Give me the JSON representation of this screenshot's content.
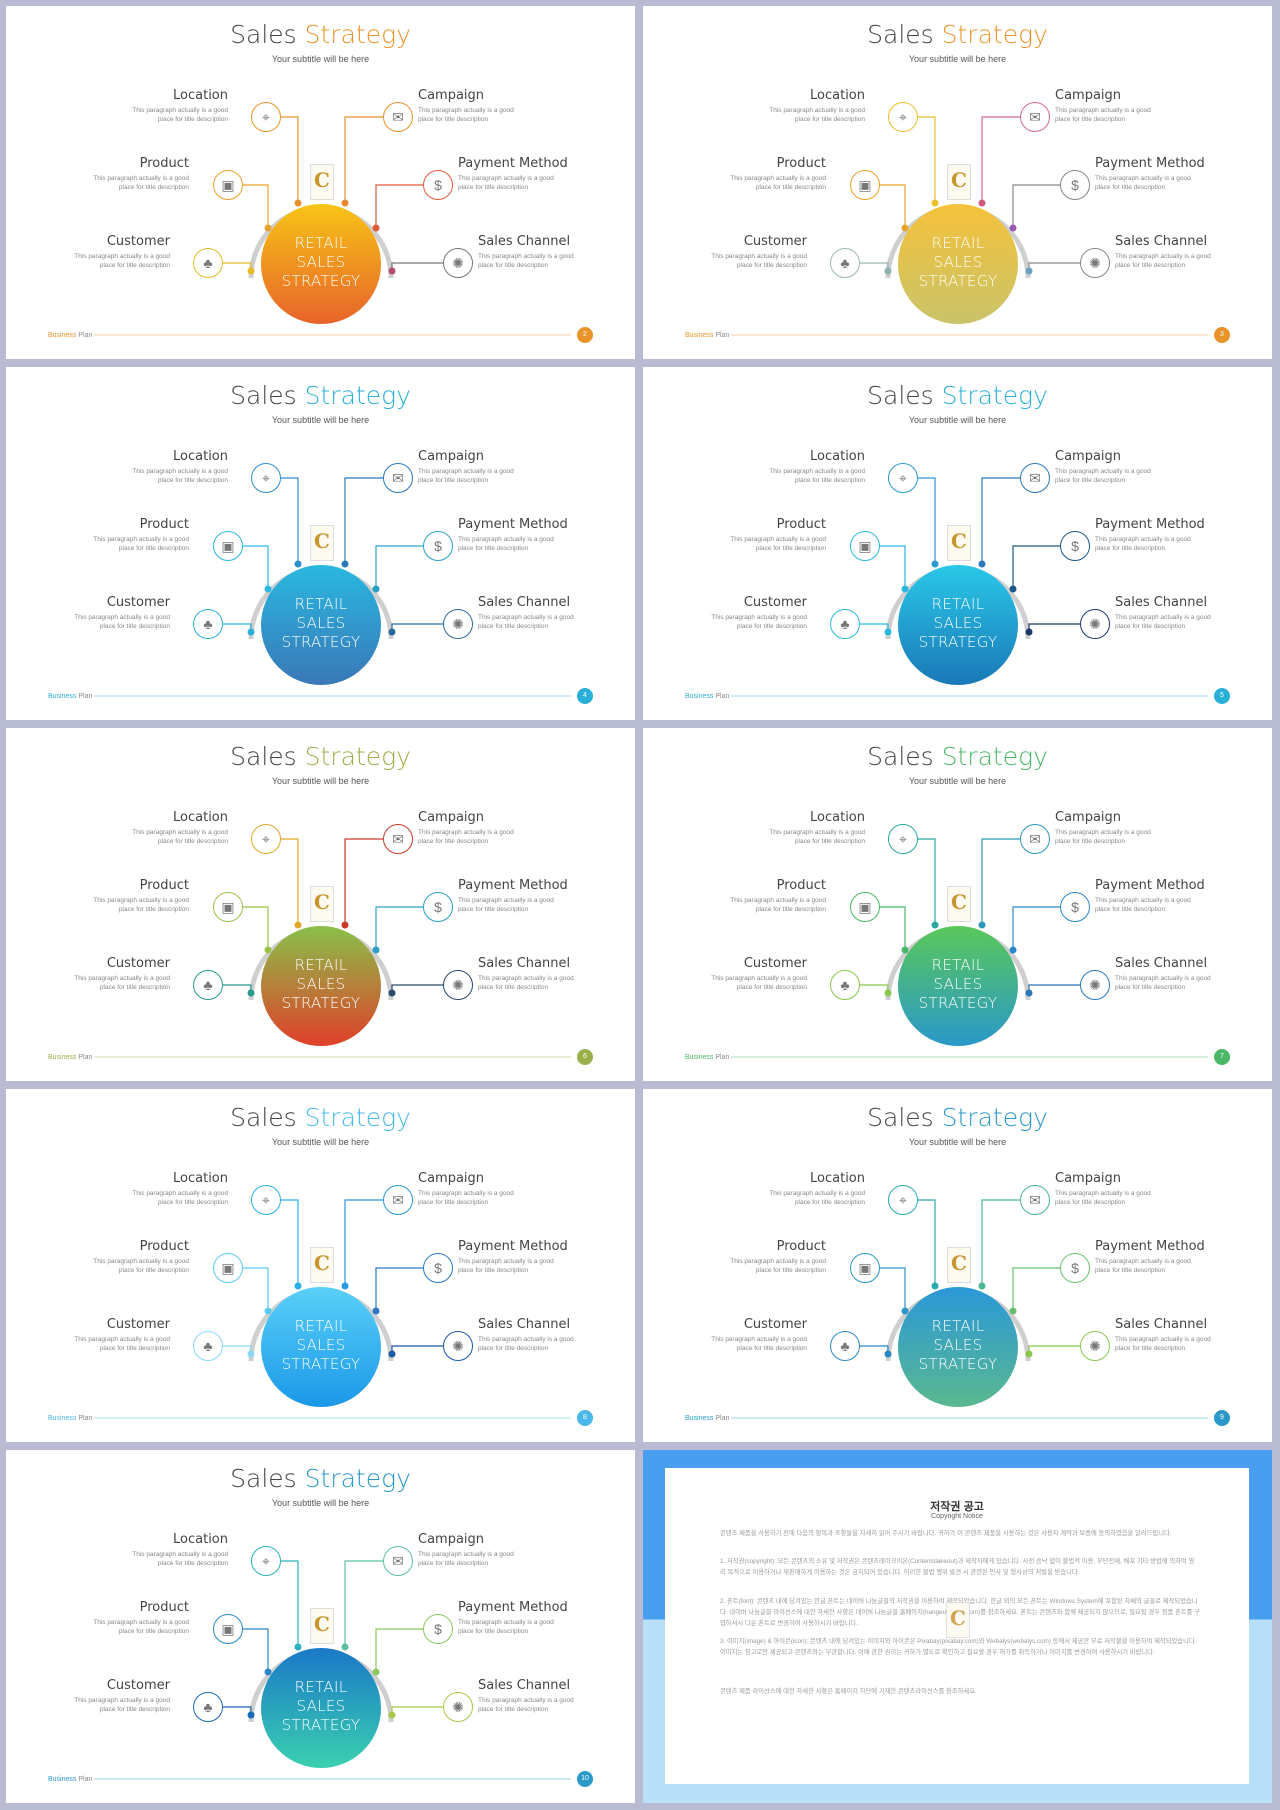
{
  "slides": [
    {
      "title_main": "Sales",
      "title_accent": "Strategy",
      "accent": "#e8942a",
      "subtitle": "Your subtitle will be here",
      "center": [
        "RETAIL",
        "SALES",
        "STRATEGY"
      ],
      "grad_top": "#f7c417",
      "grad_bottom": "#e8632a",
      "node_colors": [
        "#e6b928",
        "#e8a22a",
        "#e8902a",
        "#e88a2a",
        "#e05a3a",
        "#b0506a"
      ],
      "icon_colors": [
        "#e6b928",
        "#e8a22a",
        "#e8942a",
        "#e8902a",
        "#e05a3a",
        "#777777"
      ],
      "brand": [
        "Business",
        "Plan"
      ],
      "page": "2"
    },
    {
      "title_main": "Sales",
      "title_accent": "Strategy",
      "accent": "#e8942a",
      "subtitle": "Your subtitle will be here",
      "center": [
        "RETAIL",
        "SALES",
        "STRATEGY"
      ],
      "grad_top": "#f5c23a",
      "grad_bottom": "#c9c36a",
      "node_colors": [
        "#8ab0b0",
        "#e8a22a",
        "#e8c02a",
        "#d05a7a",
        "#9a5ab0",
        "#6aa0c0"
      ],
      "icon_colors": [
        "#9bb5b5",
        "#e8a22a",
        "#e8c02a",
        "#d06a8a",
        "#888888",
        "#888888"
      ],
      "brand": [
        "Business",
        "Plan"
      ],
      "page": "3"
    },
    {
      "title_main": "Sales",
      "title_accent": "Strategy",
      "accent": "#2ab0d8",
      "subtitle": "Your subtitle will be here",
      "center": [
        "RETAIL",
        "SALES",
        "STRATEGY"
      ],
      "grad_top": "#2ab8e0",
      "grad_bottom": "#3a78b8",
      "node_colors": [
        "#2ab0d8",
        "#2ab8e0",
        "#2a90c8",
        "#2a78b8",
        "#2aa0c8",
        "#2a6898"
      ],
      "icon_colors": [
        "#2ab0d8",
        "#2ab8e0",
        "#2a90c8",
        "#2a78b8",
        "#2aa0c8",
        "#2a6898"
      ],
      "brand": [
        "Business",
        "Plan"
      ],
      "page": "4"
    },
    {
      "title_main": "Sales",
      "title_accent": "Strategy",
      "accent": "#2ab0d8",
      "subtitle": "Your subtitle will be here",
      "center": [
        "RETAIL",
        "SALES",
        "STRATEGY"
      ],
      "grad_top": "#2ac8e8",
      "grad_bottom": "#1a78b8",
      "node_colors": [
        "#2ab8e0",
        "#2ab8e0",
        "#2a98d0",
        "#2a78b8",
        "#1a5888",
        "#1a3868"
      ],
      "icon_colors": [
        "#2ab8e0",
        "#2ab8e0",
        "#2a98d0",
        "#2a78b8",
        "#1a5888",
        "#1a3868"
      ],
      "brand": [
        "Business",
        "Plan"
      ],
      "page": "5"
    },
    {
      "title_main": "Sales",
      "title_accent": "Strategy",
      "accent": "#9ab04a",
      "subtitle": "Your subtitle will be here",
      "center": [
        "RETAIL",
        "SALES",
        "STRATEGY"
      ],
      "grad_top": "#8ac04a",
      "grad_bottom": "#e0402a",
      "node_colors": [
        "#2a9a8a",
        "#9ac04a",
        "#e0a82a",
        "#c83a2a",
        "#2aa0c8",
        "#2a4868"
      ],
      "icon_colors": [
        "#2a9a8a",
        "#9ac04a",
        "#e0a82a",
        "#c83a2a",
        "#2aa0c8",
        "#2a4868"
      ],
      "brand": [
        "Business",
        "Plan"
      ],
      "page": "6"
    },
    {
      "title_main": "Sales",
      "title_accent": "Strategy",
      "accent": "#4ab868",
      "subtitle": "Your subtitle will be here",
      "center": [
        "RETAIL",
        "SALES",
        "STRATEGY"
      ],
      "grad_top": "#5ac85a",
      "grad_bottom": "#2a98c8",
      "node_colors": [
        "#8ac84a",
        "#4ab868",
        "#2aa8a0",
        "#2a98b8",
        "#2a88c8",
        "#2a78b8"
      ],
      "icon_colors": [
        "#8ac84a",
        "#4ab868",
        "#2aa8a0",
        "#2a98b8",
        "#2a88c8",
        "#2a78b8"
      ],
      "brand": [
        "Business",
        "Plan"
      ],
      "page": "7"
    },
    {
      "title_main": "Sales",
      "title_accent": "Strategy",
      "accent": "#4ab8e8",
      "subtitle": "Your subtitle will be here",
      "center": [
        "RETAIL",
        "SALES",
        "STRATEGY"
      ],
      "grad_top": "#5ad0f8",
      "grad_bottom": "#1a98e8",
      "node_colors": [
        "#8ad8f8",
        "#5ac8f0",
        "#2ab0e8",
        "#2a98e0",
        "#2a78c8",
        "#1a58a8"
      ],
      "icon_colors": [
        "#8ad8f8",
        "#5ac8f0",
        "#2ab0e8",
        "#2a98e0",
        "#2a78c8",
        "#1a58a8"
      ],
      "brand": [
        "Business",
        "Plan"
      ],
      "page": "8"
    },
    {
      "title_main": "Sales",
      "title_accent": "Strategy",
      "accent": "#2a98c8",
      "subtitle": "Your subtitle will be here",
      "center": [
        "RETAIL",
        "SALES",
        "STRATEGY"
      ],
      "grad_top": "#2a98d8",
      "grad_bottom": "#5ab890",
      "node_colors": [
        "#2a88c8",
        "#2a98c8",
        "#2aa8b0",
        "#4ab890",
        "#6ac070",
        "#8ac850"
      ],
      "icon_colors": [
        "#2a88c8",
        "#2a98c8",
        "#2aa8b0",
        "#4ab890",
        "#6ac070",
        "#8ac850"
      ],
      "brand": [
        "Business",
        "Plan"
      ],
      "page": "9"
    },
    {
      "title_main": "Sales",
      "title_accent": "Strategy",
      "accent": "#2a98c8",
      "subtitle": "Your subtitle will be here",
      "center": [
        "RETAIL",
        "SALES",
        "STRATEGY"
      ],
      "grad_top": "#1a78c8",
      "grad_bottom": "#3ad0b0",
      "node_colors": [
        "#1a68b8",
        "#2a88c8",
        "#2ab0c0",
        "#5ac0a0",
        "#8ac860",
        "#a8c84a"
      ],
      "icon_colors": [
        "#1a68b8",
        "#2a88c8",
        "#2ab0c0",
        "#5ac0a0",
        "#8ac860",
        "#a8c84a"
      ],
      "brand": [
        "Business",
        "Plan"
      ],
      "page": "10"
    }
  ],
  "labels": {
    "location": "Location",
    "product": "Product",
    "customer": "Customer",
    "campaign": "Campaign",
    "payment": "Payment Method",
    "channel": "Sales Channel",
    "desc1": "This paragraph  actually is a good",
    "desc2": "place for title description"
  },
  "icons": {
    "location": "map-pin-icon",
    "product": "box-icon",
    "customer": "people-icon",
    "campaign": "megaphone-icon",
    "payment": "dollar-icon",
    "channel": "network-icon"
  },
  "copyright": {
    "title": "저작권 공고",
    "subtitle": "Copyright Notice",
    "paragraphs": [
      "콘텐츠 제품을 사용하기 전에 다음의 항목과 조항들을 자세히 읽어 주시기 바랍니다. 귀하가 이 콘텐츠 제품을 사용하는 것은 사용자 계약과 보증에 동의하였음을 알려드립니다.",
      "1. 저작권(copyright): 모든 콘텐츠의 소유 및 저작권은 콘텐츠레이크이온(Contentslakeout)과 제작자에게 있습니다. 사전 승낙 없이 불법적 이용, 무단전재, 배포 기타 방법에 의하여 영리 목적으로 이용하거나 재판매하게 이용하는 것은 금지되어 있습니다. 이러한 불법 행위 발견 시 관련된 민사 및 형사상의 처벌을 받습니다.",
      "2. 폰트(font): 콘텐츠 내에 담겨있는 한글 폰트는 네이버 나눔글꼴의 저작권을 이용하여 제작되었습니다. 한글 외의 모든 폰트는 Windows System에 포함된 자체의 글꼴로 제작되었습니다. 네이버 나눔글꼴 라이선스에 대한 자세한 사항은 네이버 나눔글꼴 홈페이지(hangeul.naver.com)를 참조하세요. 폰트는 콘텐츠와 함께 제공되지 않으므로, 필요할 경우 정품 폰트를 구입하셔서 다운 폰트로 변경하여 사용하시기 바랍니다.",
      "3. 이미지(image) & 아이콘(icon): 콘텐츠 내에 담겨있는 이미지와 아이콘은 Pixabay(pixabay.com)와 Webalys(webalys.com) 등에서 제공한 무료 저작물을 이용하여 제작되었습니다. 이미지는 참고로만 제공되고 콘텐츠와는 무관합니다. 이에 관한 권리는 귀하가 별도로 확인하고 필요할 경우 허가를 취득하거나 이미지를 변경하여 사용하시기 바랍니다.",
      "콘텐츠 제품 라이선스에 대한 자세한 사항은 홈페이지 하단에 기재한 콘텐츠라이선스를 참조하세요."
    ],
    "bg_top": "#4a9ef0",
    "bg_bottom": "#b8e0f8"
  }
}
